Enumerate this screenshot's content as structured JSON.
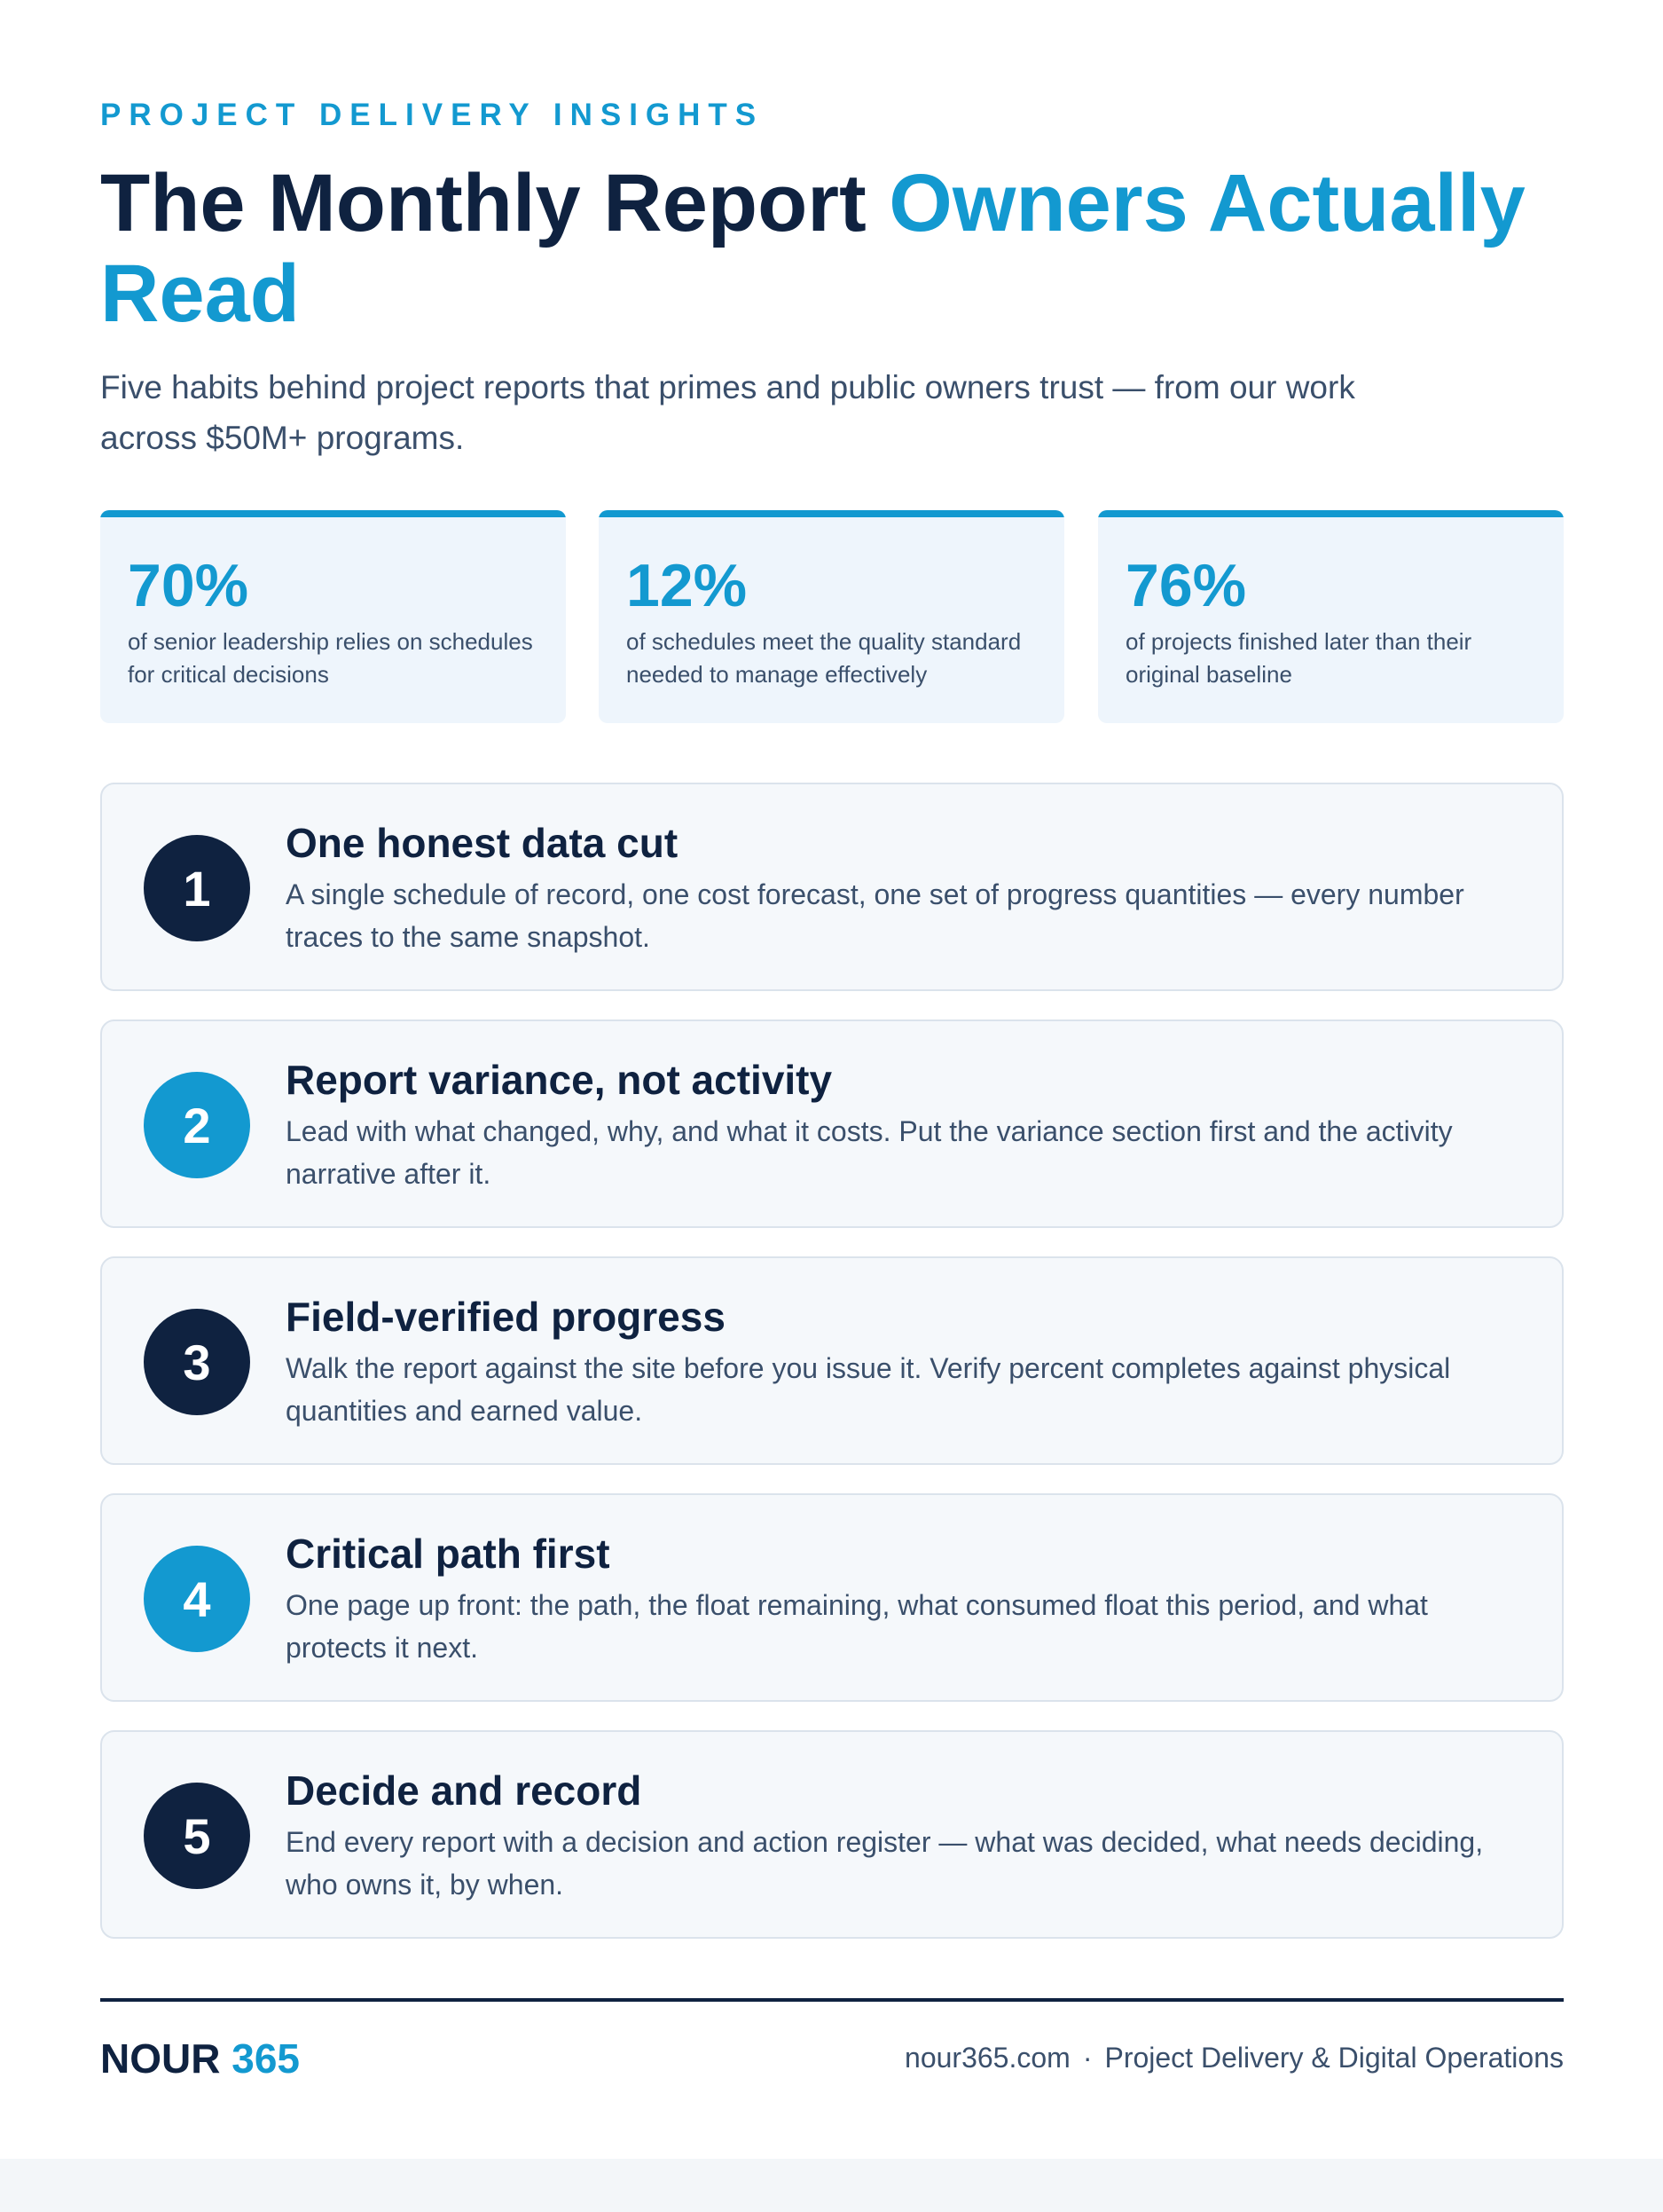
{
  "header": {
    "eyebrow": "PROJECT DELIVERY INSIGHTS",
    "title_main": "The Monthly Report",
    "title_accent": "Owners Actually Read",
    "subtitle": "Five habits behind project reports that primes and public owners trust — from our work across $50M+ programs."
  },
  "stats": [
    {
      "value": "70%",
      "description": "of senior leadership relies on schedules for critical decisions"
    },
    {
      "value": "12%",
      "description": "of schedules meet the quality standard needed to manage effectively"
    },
    {
      "value": "76%",
      "description": "of projects finished later than their original baseline"
    }
  ],
  "habits": [
    {
      "number": "1",
      "title": "One honest data cut",
      "description": "A single schedule of record, one cost forecast, one set of progress quantities — every number traces to the same snapshot."
    },
    {
      "number": "2",
      "title": "Report variance, not activity",
      "description": "Lead with what changed, why, and what it costs. Put the variance section first and the activity narrative after it."
    },
    {
      "number": "3",
      "title": "Field-verified progress",
      "description": "Walk the report against the site before you issue it. Verify percent completes against physical quantities and earned value."
    },
    {
      "number": "4",
      "title": "Critical path first",
      "description": "One page up front: the path, the float remaining, what consumed float this period, and what protects it next."
    },
    {
      "number": "5",
      "title": "Decide and record",
      "description": "End every report with a decision and action register — what was decided, what needs deciding, who owns it, by when."
    }
  ],
  "footer": {
    "brand_name": "NOUR",
    "brand_accent": "365",
    "website": "nour365.com",
    "separator": "·",
    "tagline": "Project Delivery & Digital Operations"
  },
  "colors": {
    "navy": "#0f2240",
    "accent": "#1399d0",
    "body_text": "#3a4f6b",
    "card_bg": "#f5f8fb",
    "stat_bg": "#eef5fc"
  }
}
